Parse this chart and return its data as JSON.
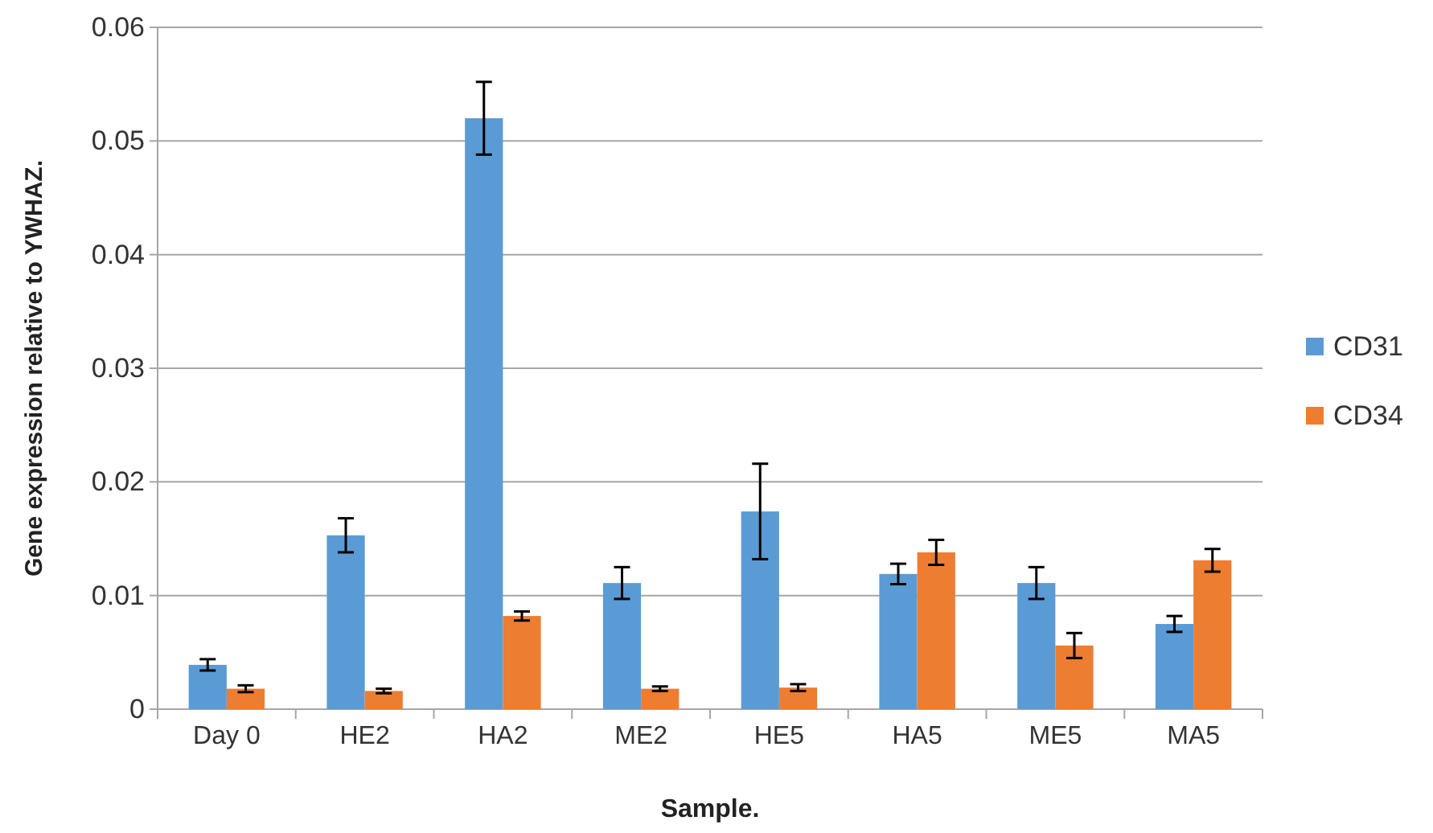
{
  "chart_data": {
    "type": "bar",
    "xlabel": "Sample.",
    "ylabel": "Gene expression relative to YWHAZ.",
    "categories": [
      "Day 0",
      "HE2",
      "HA2",
      "ME2",
      "HE5",
      "HA5",
      "ME5",
      "MA5"
    ],
    "series": [
      {
        "name": "CD31",
        "color": "#5b9bd5",
        "values": [
          0.0039,
          0.0153,
          0.052,
          0.0111,
          0.0174,
          0.0119,
          0.0111,
          0.0075
        ],
        "errors": [
          0.0005,
          0.0015,
          0.0032,
          0.0014,
          0.0042,
          0.0009,
          0.0014,
          0.0007
        ]
      },
      {
        "name": "CD34",
        "color": "#ed7d31",
        "values": [
          0.0018,
          0.0016,
          0.0082,
          0.0018,
          0.0019,
          0.0138,
          0.0056,
          0.0131
        ],
        "errors": [
          0.0003,
          0.0002,
          0.0004,
          0.0002,
          0.0003,
          0.0011,
          0.0011,
          0.001
        ]
      }
    ],
    "ylim": [
      0,
      0.06
    ],
    "yticks": [
      {
        "value": 0,
        "label": "0"
      },
      0.01,
      0.02,
      0.03,
      0.04,
      0.05,
      0.06
    ],
    "grid": "y",
    "legend": "right"
  }
}
